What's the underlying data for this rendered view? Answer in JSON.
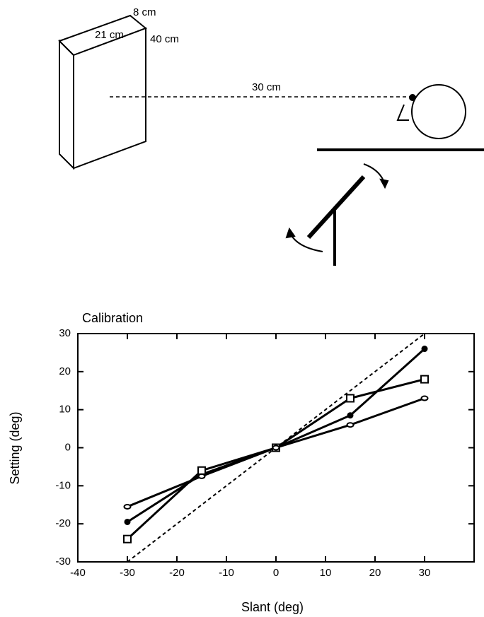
{
  "diagram": {
    "labels": [
      "8 cm",
      "21 cm",
      "40 cm",
      "30 cm"
    ]
  },
  "chart_data": {
    "type": "line",
    "title": "Calibration",
    "xlabel": "Slant (deg)",
    "ylabel": "Setting  (deg)",
    "x": [
      -30,
      -15,
      0,
      15,
      30
    ],
    "series": [
      {
        "color": "#000000",
        "marker": "filled-circle",
        "values": [
          -19.5,
          -7,
          0,
          8.5,
          26
        ]
      },
      {
        "color": "#000000",
        "marker": "open-square",
        "values": [
          -24,
          -6,
          0,
          13,
          18
        ]
      },
      {
        "color": "#000000",
        "marker": "open-ellipse",
        "values": [
          -15.5,
          -7.5,
          0,
          6,
          13
        ]
      },
      {
        "color": "#000000",
        "marker": "none",
        "dash": true,
        "values": [
          -30,
          -15,
          0,
          15,
          30
        ]
      }
    ],
    "xlim": [
      -40,
      40
    ],
    "ylim": [
      -30,
      30
    ],
    "xticks": [
      -40,
      -30,
      -20,
      -10,
      0,
      10,
      20,
      30
    ],
    "yticks": [
      -30,
      -20,
      -10,
      0,
      10,
      20,
      30
    ]
  }
}
